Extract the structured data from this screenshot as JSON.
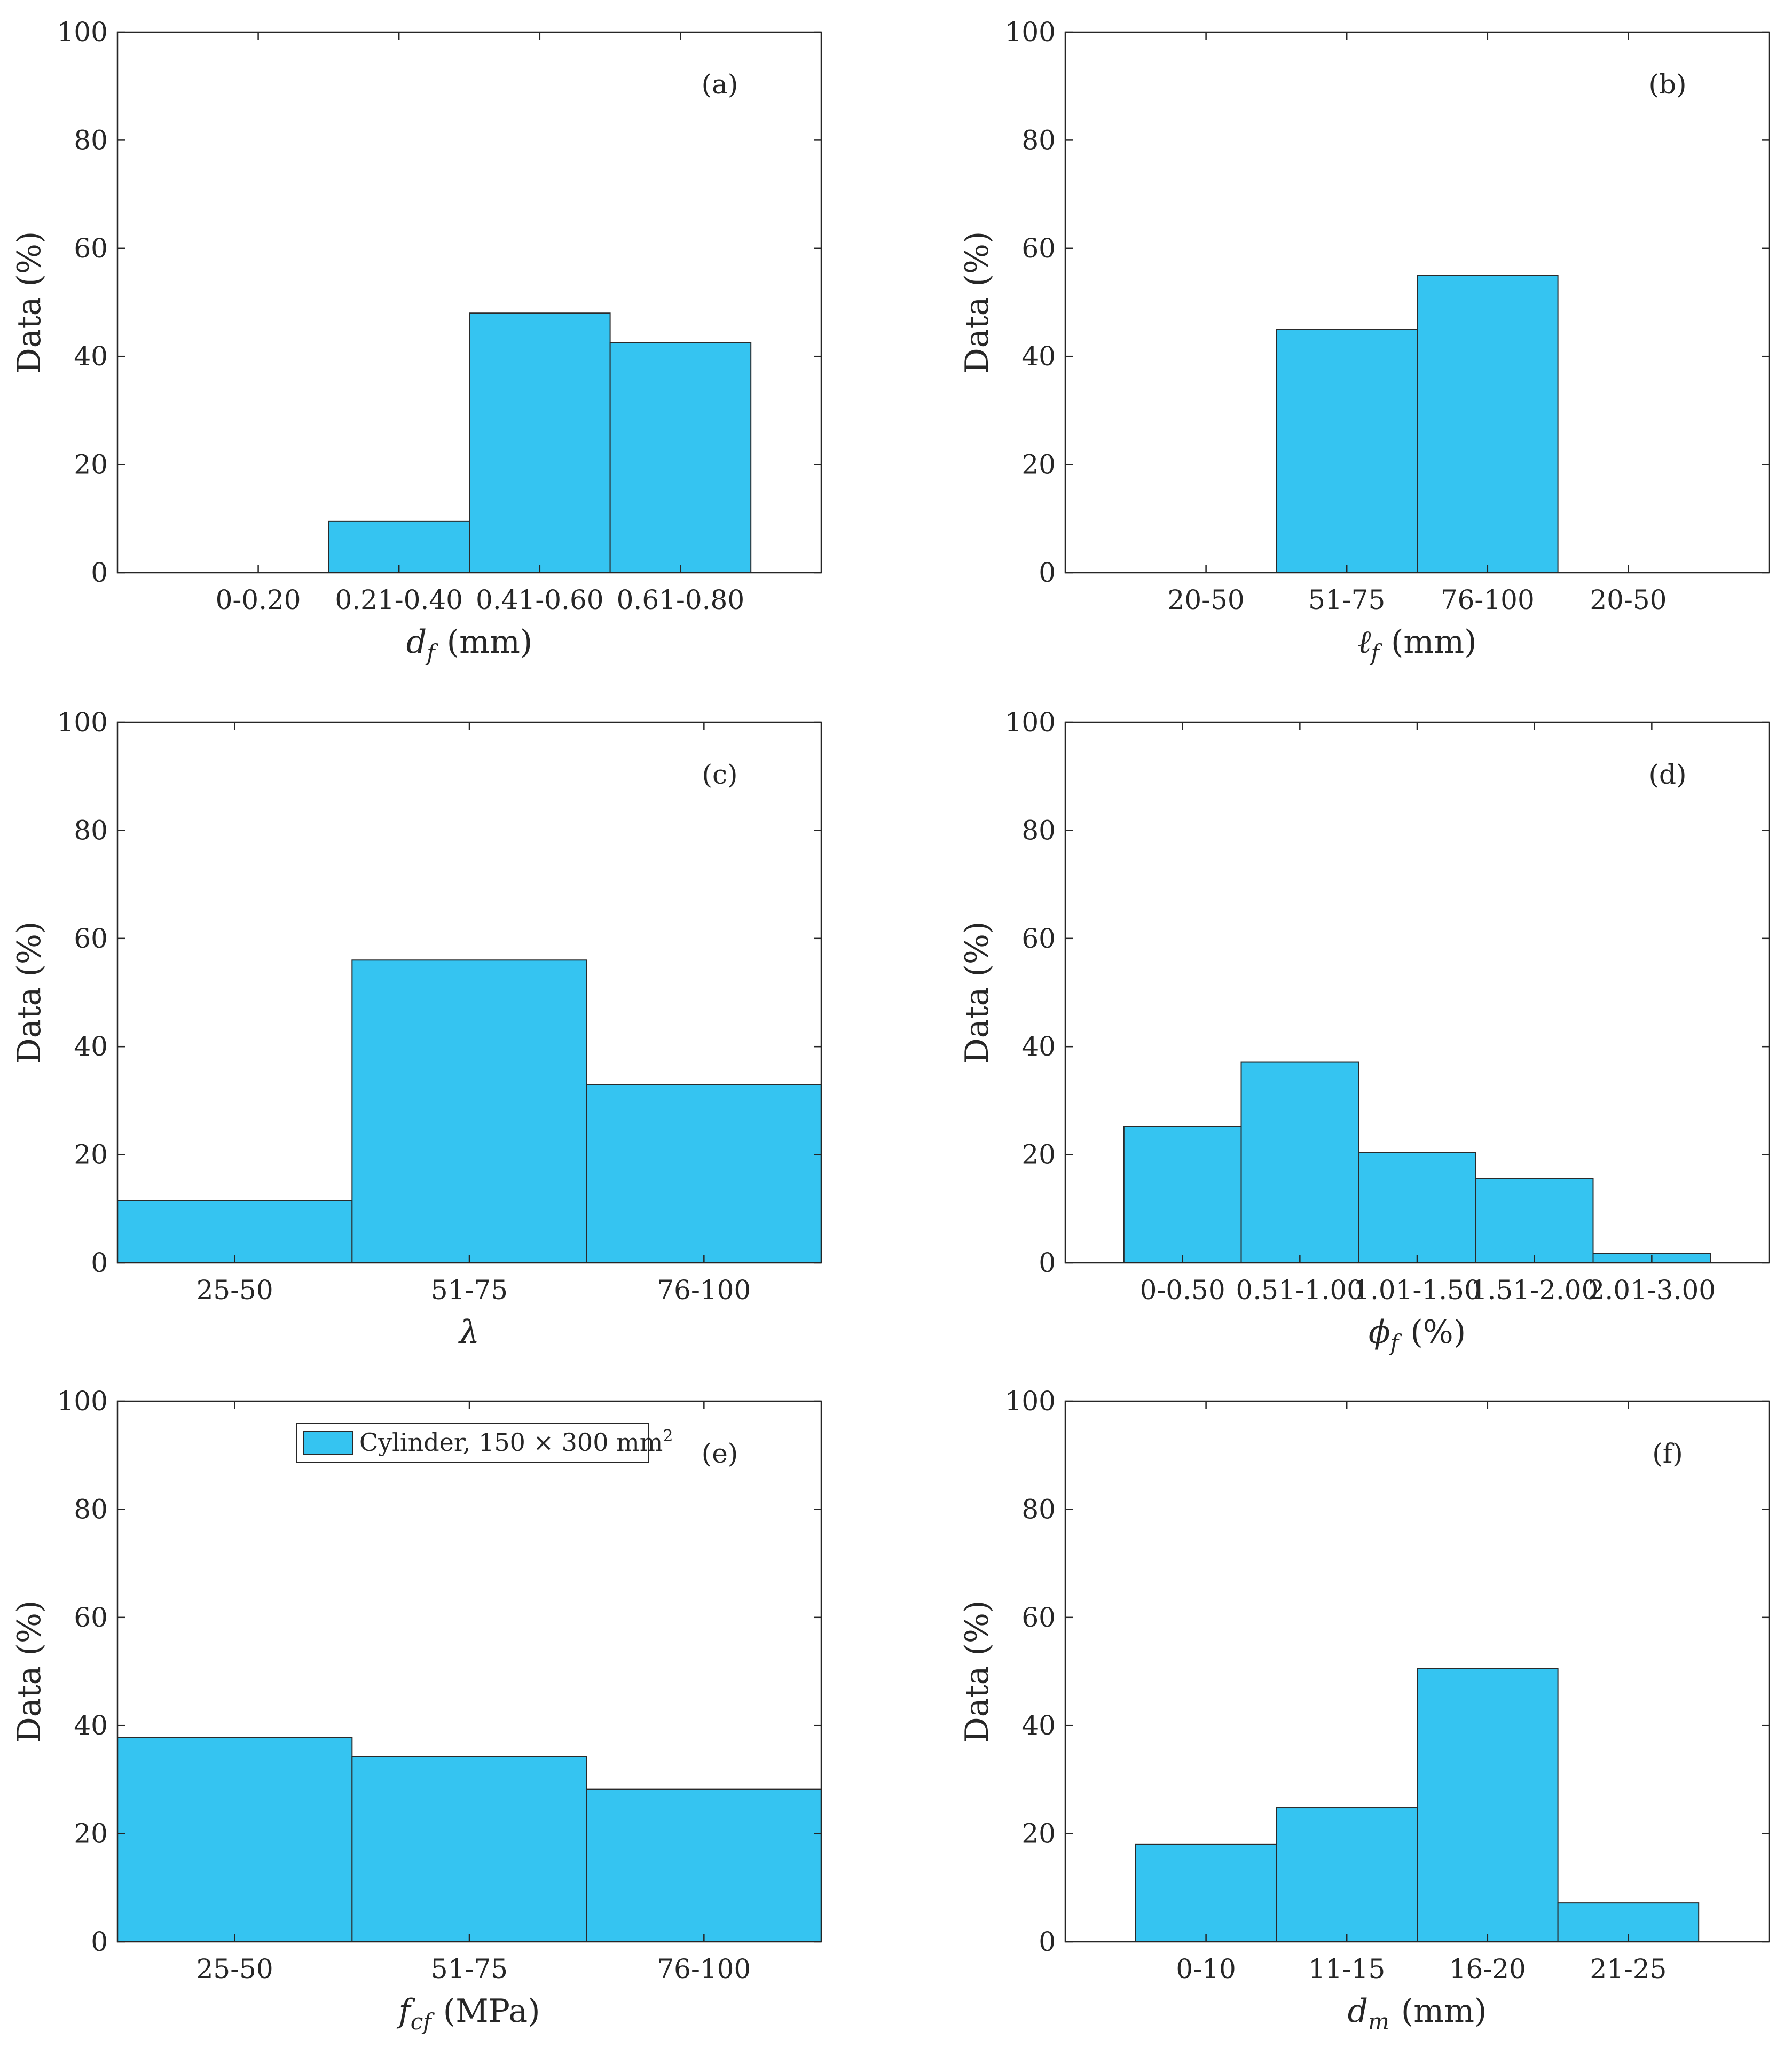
{
  "colors": {
    "bar": "#35C4F1",
    "bar_edge": "#2a2a2a",
    "axes": "#262626",
    "background": "#ffffff"
  },
  "chart_data": [
    {
      "type": "bar",
      "tag": "(a)",
      "xlabel": "d",
      "xlabel_sub": "f",
      "xlabel_unit": "(mm)",
      "ylabel": "Data (%)",
      "ylim": [
        0,
        100
      ],
      "yticks": [
        0,
        20,
        40,
        60,
        80,
        100
      ],
      "xlim": [
        0,
        5
      ],
      "categories": [
        "0-0.20",
        "0.21-0.40",
        "0.41-0.60",
        "0.61-0.80"
      ],
      "values": [
        0,
        9.5,
        48,
        42.5
      ]
    },
    {
      "type": "bar",
      "tag": "(b)",
      "xlabel": "ℓ",
      "xlabel_sub": "f",
      "xlabel_unit": "(mm)",
      "ylabel": "Data (%)",
      "ylim": [
        0,
        100
      ],
      "yticks": [
        0,
        20,
        40,
        60,
        80,
        100
      ],
      "xlim": [
        0,
        5
      ],
      "categories": [
        "20-50",
        "51-75",
        "76-100",
        "20-50"
      ],
      "values": [
        0,
        45,
        55,
        0
      ]
    },
    {
      "type": "bar",
      "tag": "(c)",
      "xlabel": "λ",
      "xlabel_sub": "",
      "xlabel_unit": "",
      "ylabel": "Data (%)",
      "ylim": [
        0,
        100
      ],
      "yticks": [
        0,
        20,
        40,
        60,
        80,
        100
      ],
      "xlim": [
        0.5,
        3.5
      ],
      "categories": [
        "25-50",
        "51-75",
        "76-100"
      ],
      "values": [
        11.5,
        56,
        33
      ]
    },
    {
      "type": "bar",
      "tag": "(d)",
      "xlabel": "ϕ",
      "xlabel_sub": "f",
      "xlabel_unit": "(%)",
      "ylabel": "Data (%)",
      "ylim": [
        0,
        100
      ],
      "yticks": [
        0,
        20,
        40,
        60,
        80,
        100
      ],
      "xlim": [
        0,
        6
      ],
      "categories": [
        "0-0.50",
        "0.51-1.00",
        "1.01-1.50",
        "1.51-2.00",
        "2.01-3.00"
      ],
      "values": [
        25.2,
        37.1,
        20.4,
        15.6,
        1.7
      ]
    },
    {
      "type": "bar",
      "tag": "(e)",
      "xlabel": "f",
      "xlabel_sub": "cf",
      "xlabel_unit": "(MPa)",
      "ylabel": "Data (%)",
      "ylim": [
        0,
        100
      ],
      "yticks": [
        0,
        20,
        40,
        60,
        80,
        100
      ],
      "xlim": [
        0.5,
        3.5
      ],
      "categories": [
        "25-50",
        "51-75",
        "76-100"
      ],
      "values": [
        37.8,
        34.2,
        28.2
      ],
      "legend": {
        "label": "Cylinder, 150 × 300 mm",
        "superscript": "2",
        "position": "top-center"
      }
    },
    {
      "type": "bar",
      "tag": "(f)",
      "xlabel": "d",
      "xlabel_sub": "m",
      "xlabel_unit": "(mm)",
      "ylabel": "Data (%)",
      "ylim": [
        0,
        100
      ],
      "yticks": [
        0,
        20,
        40,
        60,
        80,
        100
      ],
      "xlim": [
        0,
        5
      ],
      "categories": [
        "0-10",
        "11-15",
        "16-20",
        "21-25"
      ],
      "values": [
        18,
        24.8,
        50.5,
        7.2
      ]
    }
  ]
}
